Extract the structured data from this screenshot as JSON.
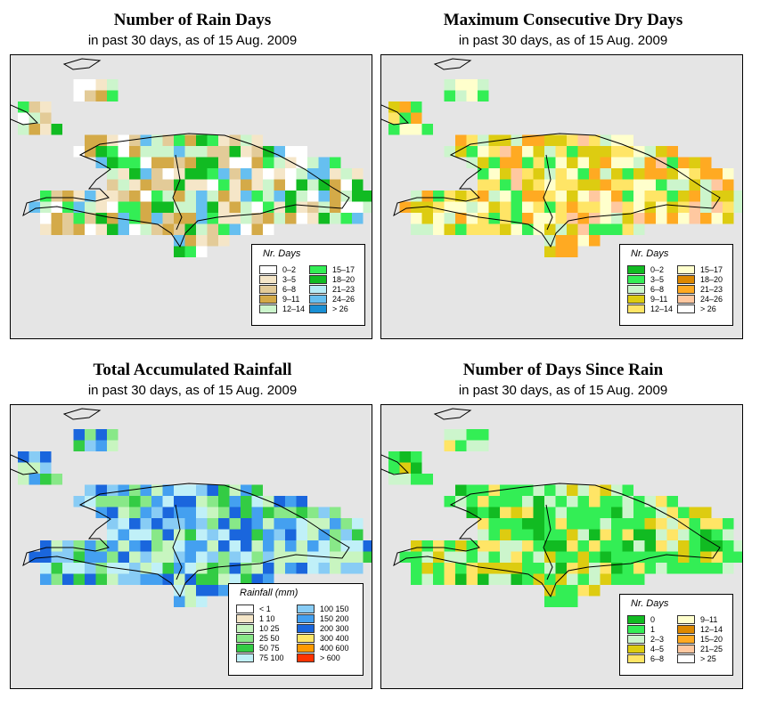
{
  "panels": [
    {
      "id": "rain-days",
      "title": "Number of Rain Days",
      "subtitle": "in past 30 days, as of  15 Aug. 2009",
      "legend": {
        "title": "Nr. Days",
        "items": [
          {
            "label": "0–2",
            "color": "#ffffff"
          },
          {
            "label": "3–5",
            "color": "#f5e6c8"
          },
          {
            "label": "6–8",
            "color": "#e3cb98"
          },
          {
            "label": "9–11",
            "color": "#d4aa48"
          },
          {
            "label": "12–14",
            "color": "#ccf5cc"
          },
          {
            "label": "15–17",
            "color": "#33ee55"
          },
          {
            "label": "18–20",
            "color": "#11bb22"
          },
          {
            "label": "21–23",
            "color": "#b8ecf7"
          },
          {
            "label": "24–26",
            "color": "#66bff0"
          },
          {
            "label": "> 26",
            "color": "#1a8fd4"
          }
        ]
      }
    },
    {
      "id": "dry-days",
      "title": "Maximum Consecutive Dry Days",
      "subtitle": "in past 30 days, as of  15 Aug. 2009",
      "legend": {
        "title": "Nr. Days",
        "items": [
          {
            "label": "0–2",
            "color": "#11bb22"
          },
          {
            "label": "3–5",
            "color": "#33ee55"
          },
          {
            "label": "6–8",
            "color": "#ccf5cc"
          },
          {
            "label": "9–11",
            "color": "#ddcc11"
          },
          {
            "label": "12–14",
            "color": "#ffe566"
          },
          {
            "label": "15–17",
            "color": "#ffffcc"
          },
          {
            "label": "18–20",
            "color": "#dd8800"
          },
          {
            "label": "21–23",
            "color": "#ffaa22"
          },
          {
            "label": "24–26",
            "color": "#ffc8a0"
          },
          {
            "label": "> 26",
            "color": "#ffffff"
          }
        ]
      }
    },
    {
      "id": "rainfall",
      "title": "Total Accumulated Rainfall",
      "subtitle": "in past 30 days, as of  15 Aug. 2009",
      "legend": {
        "title": "Rainfall (mm)",
        "items": [
          {
            "label": "< 1",
            "color": "#ffffff"
          },
          {
            "label": "1   10",
            "color": "#f5e6c8"
          },
          {
            "label": "10   25",
            "color": "#c8f5c0"
          },
          {
            "label": "25   50",
            "color": "#88e888"
          },
          {
            "label": "50   75",
            "color": "#33cc44"
          },
          {
            "label": "75  100",
            "color": "#c0f0f8"
          },
          {
            "label": "100  150",
            "color": "#88ccf5"
          },
          {
            "label": "150  200",
            "color": "#44a0f0"
          },
          {
            "label": "200  300",
            "color": "#1a66dd"
          },
          {
            "label": "300  400",
            "color": "#ffe566"
          },
          {
            "label": "400  600",
            "color": "#ff9900"
          },
          {
            "label": "> 600",
            "color": "#ff3300"
          }
        ]
      }
    },
    {
      "id": "since-rain",
      "title": "Number of Days Since Rain",
      "subtitle": "in past 30 days, as of  15 Aug. 2009",
      "legend": {
        "title": "Nr. Days",
        "items": [
          {
            "label": "0",
            "color": "#11bb22"
          },
          {
            "label": "1",
            "color": "#33ee55"
          },
          {
            "label": "2–3",
            "color": "#ccf5cc"
          },
          {
            "label": "4–5",
            "color": "#ddcc11"
          },
          {
            "label": "6–8",
            "color": "#ffe566"
          },
          {
            "label": "9–11",
            "color": "#ffffcc"
          },
          {
            "label": "12–14",
            "color": "#dd8800"
          },
          {
            "label": "15–20",
            "color": "#ffaa22"
          },
          {
            "label": "21–25",
            "color": "#ffc8a0"
          },
          {
            "label": "> 25",
            "color": "#ffffff"
          }
        ]
      }
    }
  ]
}
